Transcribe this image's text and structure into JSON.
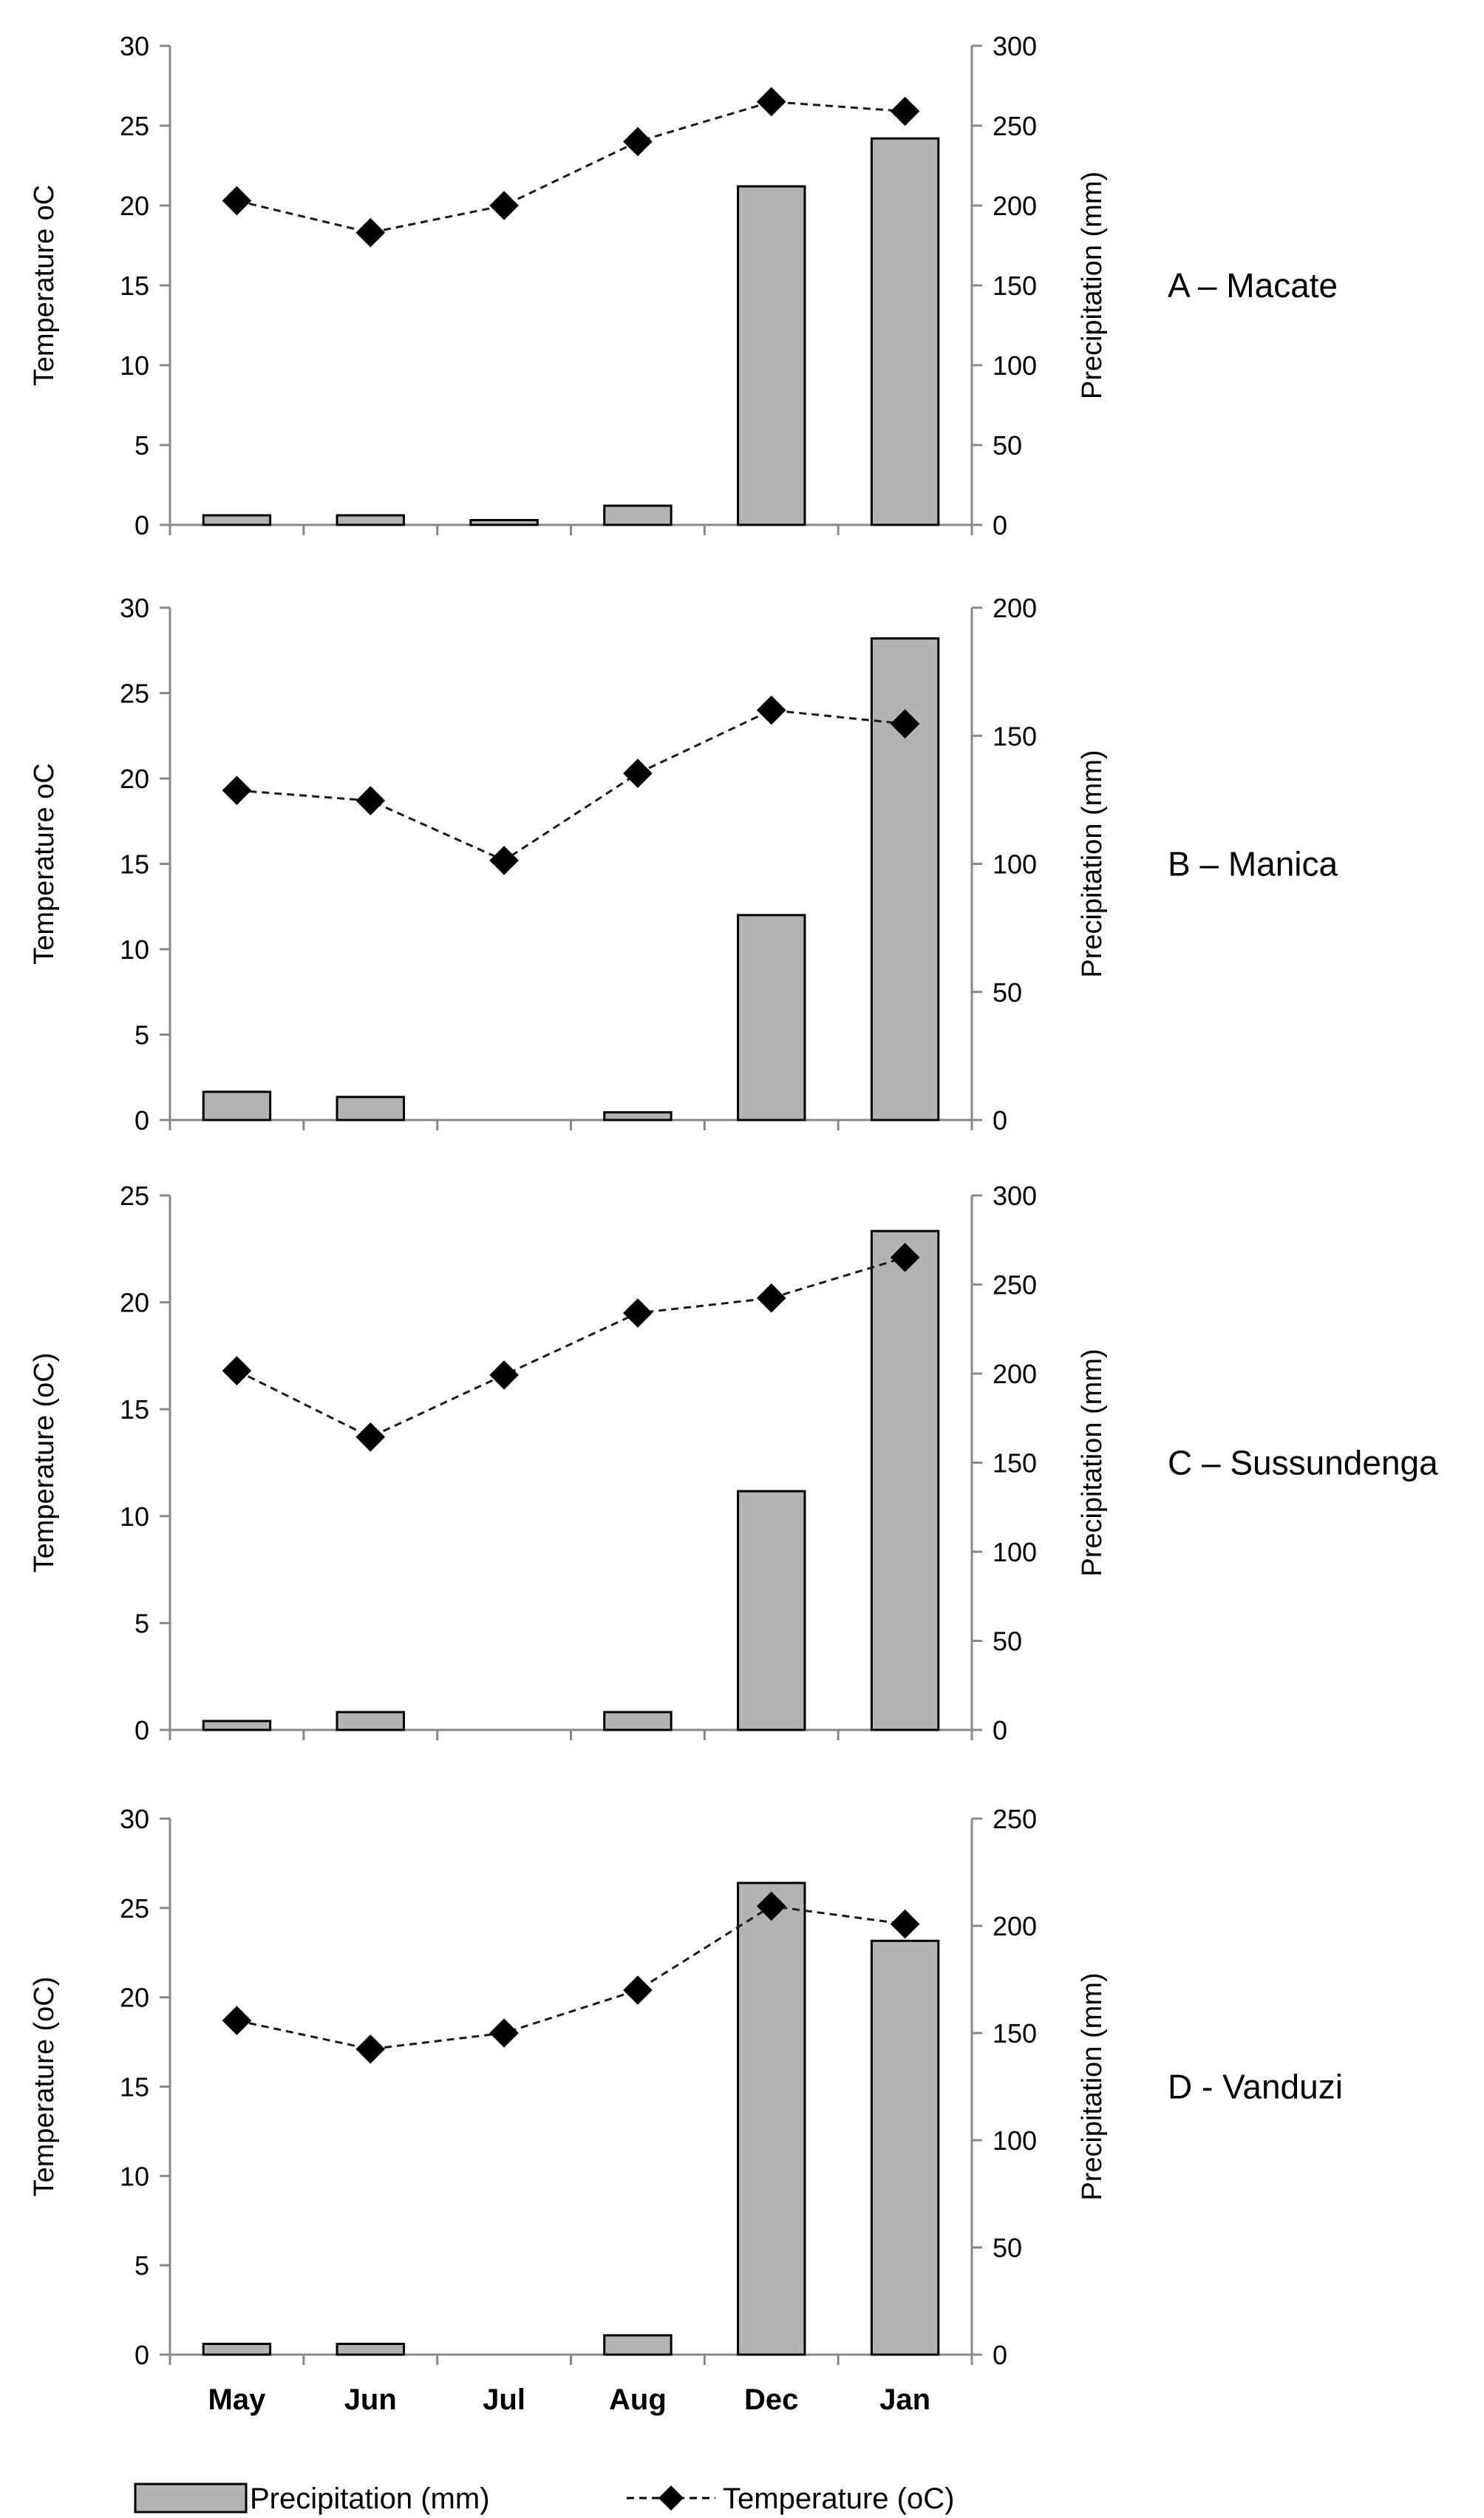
{
  "chart_data": [
    {
      "type": "bar",
      "panel_label": "A – Macate",
      "categories": [
        "May",
        "Jun",
        "Jul",
        "Aug",
        "Dec",
        "Jan"
      ],
      "show_category_labels": false,
      "y_left": {
        "label": "Temperature oC",
        "lim": [
          0,
          30
        ],
        "ticks": [
          0,
          5,
          10,
          15,
          20,
          25,
          30
        ]
      },
      "y_right": {
        "label": "Precipitation (mm)",
        "lim": [
          0,
          300
        ],
        "ticks": [
          0,
          50,
          100,
          150,
          200,
          250,
          300
        ]
      },
      "series": [
        {
          "name": "Precipitation (mm)",
          "type": "bar",
          "axis": "right",
          "values": [
            6,
            6,
            3,
            12,
            212,
            242
          ]
        },
        {
          "name": "Temperature (oC)",
          "type": "line",
          "axis": "left",
          "values": [
            20.3,
            18.3,
            20.0,
            24.0,
            26.5,
            25.9
          ]
        }
      ]
    },
    {
      "type": "bar",
      "panel_label": "B – Manica",
      "categories": [
        "May",
        "Jun",
        "Jul",
        "Aug",
        "Dec",
        "Jan"
      ],
      "show_category_labels": false,
      "y_left": {
        "label": "Temperature oC",
        "lim": [
          0,
          30
        ],
        "ticks": [
          0,
          5,
          10,
          15,
          20,
          25,
          30
        ]
      },
      "y_right": {
        "label": "Precipitation (mm)",
        "lim": [
          0,
          200
        ],
        "ticks": [
          0,
          50,
          100,
          150,
          200
        ]
      },
      "series": [
        {
          "name": "Precipitation (mm)",
          "type": "bar",
          "axis": "right",
          "values": [
            11,
            9,
            0,
            3,
            80,
            188
          ]
        },
        {
          "name": "Temperature (oC)",
          "type": "line",
          "axis": "left",
          "values": [
            19.3,
            18.7,
            15.2,
            20.3,
            24.0,
            23.2
          ]
        }
      ]
    },
    {
      "type": "bar",
      "panel_label": "C – Sussundenga",
      "categories": [
        "May",
        "Jun",
        "Jul",
        "Aug",
        "Dec",
        "Jan"
      ],
      "show_category_labels": false,
      "y_left": {
        "label": "Temperature (oC)",
        "lim": [
          0,
          25
        ],
        "ticks": [
          0,
          5,
          10,
          15,
          20,
          25
        ]
      },
      "y_right": {
        "label": "Precipitation (mm)",
        "lim": [
          0,
          300
        ],
        "ticks": [
          0,
          50,
          100,
          150,
          200,
          250,
          300
        ]
      },
      "series": [
        {
          "name": "Precipitation (mm)",
          "type": "bar",
          "axis": "right",
          "values": [
            5,
            10,
            0,
            10,
            134,
            280
          ]
        },
        {
          "name": "Temperature (oC)",
          "type": "line",
          "axis": "left",
          "values": [
            16.8,
            13.7,
            16.6,
            19.5,
            20.2,
            22.1
          ]
        }
      ]
    },
    {
      "type": "bar",
      "panel_label": "D - Vanduzi",
      "categories": [
        "May",
        "Jun",
        "Jul",
        "Aug",
        "Dec",
        "Jan"
      ],
      "show_category_labels": true,
      "y_left": {
        "label": "Temperature (oC)",
        "lim": [
          0,
          30
        ],
        "ticks": [
          0,
          5,
          10,
          15,
          20,
          25,
          30
        ]
      },
      "y_right": {
        "label": "Precipitation (mm)",
        "lim": [
          0,
          250
        ],
        "ticks": [
          0,
          50,
          100,
          150,
          200,
          250
        ]
      },
      "series": [
        {
          "name": "Precipitation (mm)",
          "type": "bar",
          "axis": "right",
          "values": [
            5,
            5,
            0,
            9,
            220,
            193
          ]
        },
        {
          "name": "Temperature (oC)",
          "type": "line",
          "axis": "left",
          "values": [
            18.7,
            17.1,
            18.0,
            20.4,
            25.1,
            24.1
          ]
        }
      ]
    }
  ],
  "legend": {
    "bar_label": "Precipitation (mm)",
    "line_label": "Temperature (oC)",
    "bar_color": "#b3b3b3",
    "line_color": "#000000"
  },
  "colors": {
    "bar_fill": "#b3b3b3",
    "bar_stroke": "#000000",
    "axis": "#888888",
    "line": "#1a1a1a",
    "marker": "#000000"
  }
}
